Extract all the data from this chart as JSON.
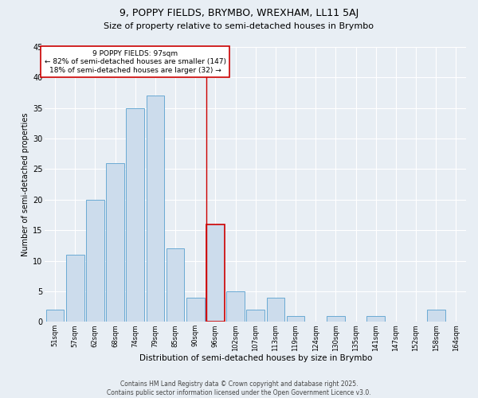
{
  "title1": "9, POPPY FIELDS, BRYMBO, WREXHAM, LL11 5AJ",
  "title2": "Size of property relative to semi-detached houses in Brymbo",
  "xlabel": "Distribution of semi-detached houses by size in Brymbo",
  "ylabel": "Number of semi-detached properties",
  "categories": [
    "51sqm",
    "57sqm",
    "62sqm",
    "68sqm",
    "74sqm",
    "79sqm",
    "85sqm",
    "90sqm",
    "96sqm",
    "102sqm",
    "107sqm",
    "113sqm",
    "119sqm",
    "124sqm",
    "130sqm",
    "135sqm",
    "141sqm",
    "147sqm",
    "152sqm",
    "158sqm",
    "164sqm"
  ],
  "values": [
    2,
    11,
    20,
    26,
    35,
    37,
    12,
    4,
    16,
    5,
    2,
    4,
    1,
    0,
    1,
    0,
    1,
    0,
    0,
    2,
    0
  ],
  "bar_color": "#ccdcec",
  "bar_edge_color": "#6aaad4",
  "highlight_index": 8,
  "highlight_line_color": "#cc0000",
  "annotation_text": "9 POPPY FIELDS: 97sqm\n← 82% of semi-detached houses are smaller (147)\n18% of semi-detached houses are larger (32) →",
  "annotation_box_color": "#ffffff",
  "annotation_box_edge": "#cc0000",
  "ylim": [
    0,
    45
  ],
  "yticks": [
    0,
    5,
    10,
    15,
    20,
    25,
    30,
    35,
    40,
    45
  ],
  "footer": "Contains HM Land Registry data © Crown copyright and database right 2025.\nContains public sector information licensed under the Open Government Licence v3.0.",
  "bg_color": "#e8eef4",
  "plot_bg_color": "#e8eef4",
  "grid_color": "#ffffff",
  "title1_fontsize": 9,
  "title2_fontsize": 8,
  "annotation_fontsize": 6.5,
  "footer_fontsize": 5.5,
  "xlabel_fontsize": 7.5,
  "ylabel_fontsize": 7,
  "xtick_fontsize": 6,
  "ytick_fontsize": 7
}
